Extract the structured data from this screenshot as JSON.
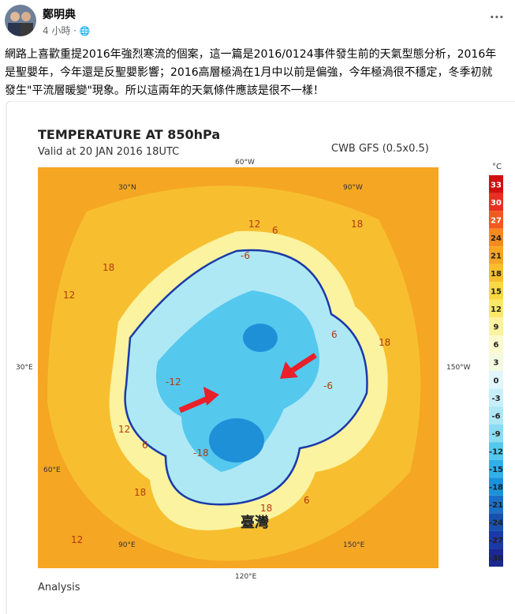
{
  "header": {
    "author": "鄭明典",
    "time": "4 小時 ·",
    "menu": "···"
  },
  "post": {
    "lines": [
      "網路上喜歡重提2016年強烈寒流的個案，這一篇是2016/0124事件發生前的天氣型態分析，2016年",
      "是聖嬰年，今年還是反聖嬰影響；2016高層極渦在1月中以前是偏強，今年極渦很不穩定，冬季初就",
      "發生\"平流層暖變\"現象。所以這兩年的天氣條件應該是很不一樣！"
    ]
  },
  "map": {
    "title": "TEMPERATURE AT 850hPa",
    "valid": "Valid at 20 JAN 2016 18UTC",
    "model": "CWB GFS (0.5x0.5)",
    "footer": "Analysis",
    "annotation": "臺灣",
    "lon_labels": [
      "60°W",
      "30°E",
      "150°W",
      "120°E",
      "30°N",
      "90°W",
      "60°E",
      "90°E",
      "150°E"
    ],
    "contour_labels": [
      "12",
      "6",
      "18",
      "12",
      "18",
      "-6",
      "6",
      "-12",
      "18",
      "-6",
      "12",
      "-18",
      "6",
      "18",
      "6",
      "18",
      "12"
    ],
    "colorbar": {
      "unit": "°C",
      "labels": [
        33,
        30,
        27,
        24,
        21,
        18,
        15,
        12,
        9,
        6,
        3,
        0,
        -3,
        -6,
        -9,
        -12,
        -15,
        -18,
        -21,
        -24,
        -27,
        -30
      ]
    }
  }
}
